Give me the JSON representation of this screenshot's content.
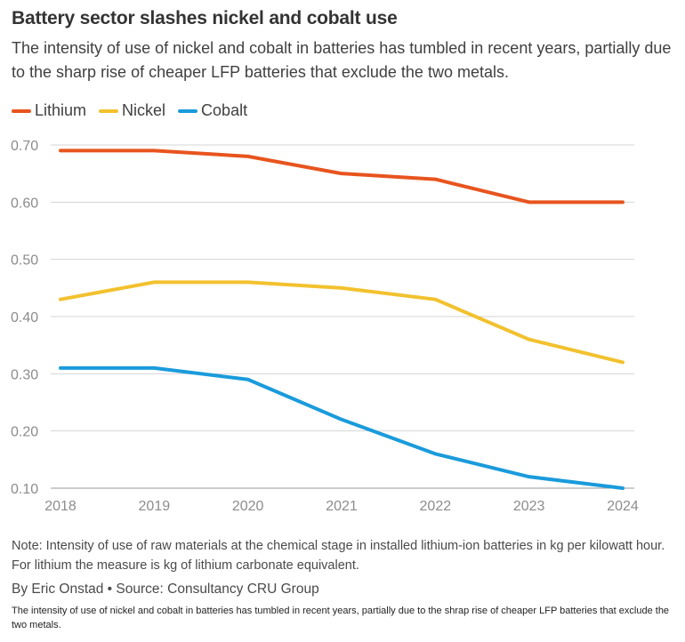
{
  "header": {
    "title": "Battery sector slashes nickel and cobalt use",
    "subtitle": "The intensity of use of nickel and cobalt in batteries has tumbled in recent years, partially due to the sharp rise of cheaper LFP batteries that exclude the two metals."
  },
  "chart_data": {
    "type": "line",
    "title": "Battery sector slashes nickel and cobalt use",
    "xlabel": "",
    "ylabel": "",
    "x": [
      "2018",
      "2019",
      "2020",
      "2021",
      "2022",
      "2023",
      "2024"
    ],
    "ylim": [
      0.1,
      0.7
    ],
    "yticks": [
      "0.70",
      "0.60",
      "0.50",
      "0.40",
      "0.30",
      "0.20",
      "0.10"
    ],
    "grid": true,
    "legend": "top-left",
    "series": [
      {
        "name": "Lithium",
        "color": "#e8541e",
        "values": [
          0.69,
          0.69,
          0.68,
          0.65,
          0.64,
          0.6,
          0.6
        ]
      },
      {
        "name": "Nickel",
        "color": "#f2c12e",
        "values": [
          0.43,
          0.46,
          0.46,
          0.45,
          0.43,
          0.36,
          0.32
        ]
      },
      {
        "name": "Cobalt",
        "color": "#1a9bdb",
        "values": [
          0.31,
          0.31,
          0.29,
          0.22,
          0.16,
          0.12,
          0.1
        ]
      }
    ]
  },
  "footer": {
    "note": "Note: Intensity of use of raw materials at the chemical stage in installed lithium-ion batteries in kg per kilowatt hour. For lithium the measure is kg of lithium carbonate equivalent.",
    "byline": "By Eric Onstad • Source: Consultancy CRU Group",
    "caption": "The intensity of use of nickel and cobalt in batteries has tumbled in recent years, partially due to the shrap rise of cheaper LFP batteries that exclude the two metals."
  }
}
